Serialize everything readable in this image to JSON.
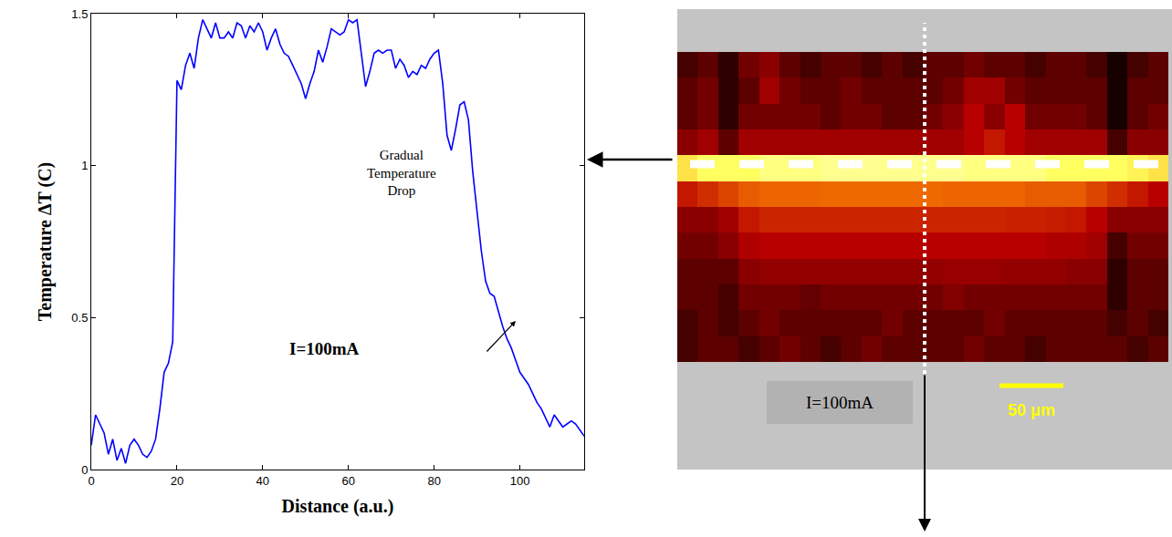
{
  "chart_data": [
    {
      "type": "line",
      "x_label": "Distance (a.u.)",
      "y_label": "Temperature ΔT (C)",
      "annotations": [
        "I=100mA",
        "Gradual Temperature Drop"
      ],
      "x": [
        0,
        1,
        2,
        3,
        4,
        5,
        6,
        7,
        8,
        9,
        10,
        11,
        12,
        13,
        14,
        15,
        16,
        17,
        18,
        19,
        20,
        21,
        22,
        23,
        24,
        25,
        26,
        27,
        28,
        29,
        30,
        31,
        32,
        33,
        34,
        35,
        36,
        37,
        38,
        39,
        40,
        41,
        42,
        43,
        44,
        45,
        46,
        47,
        48,
        49,
        50,
        51,
        52,
        53,
        54,
        55,
        56,
        57,
        58,
        59,
        60,
        61,
        62,
        63,
        64,
        65,
        66,
        67,
        68,
        69,
        70,
        71,
        72,
        73,
        74,
        75,
        76,
        77,
        78,
        79,
        80,
        81,
        82,
        83,
        84,
        85,
        86,
        87,
        88,
        89,
        90,
        91,
        92,
        93,
        94,
        95,
        96,
        97,
        98,
        99,
        100,
        101,
        102,
        103,
        104,
        105,
        106,
        107,
        108,
        109,
        110,
        111,
        112,
        113,
        114,
        115
      ],
      "values": [
        0.08,
        0.18,
        0.15,
        0.12,
        0.05,
        0.1,
        0.03,
        0.07,
        0.02,
        0.08,
        0.1,
        0.08,
        0.05,
        0.04,
        0.06,
        0.1,
        0.2,
        0.32,
        0.35,
        0.42,
        1.28,
        1.25,
        1.33,
        1.37,
        1.32,
        1.42,
        1.48,
        1.45,
        1.42,
        1.47,
        1.42,
        1.42,
        1.44,
        1.42,
        1.47,
        1.46,
        1.42,
        1.46,
        1.44,
        1.47,
        1.44,
        1.38,
        1.42,
        1.45,
        1.4,
        1.37,
        1.36,
        1.33,
        1.3,
        1.27,
        1.22,
        1.27,
        1.31,
        1.38,
        1.34,
        1.39,
        1.45,
        1.44,
        1.43,
        1.44,
        1.48,
        1.47,
        1.48,
        1.37,
        1.26,
        1.31,
        1.37,
        1.38,
        1.37,
        1.38,
        1.38,
        1.32,
        1.35,
        1.33,
        1.29,
        1.31,
        1.3,
        1.33,
        1.32,
        1.35,
        1.37,
        1.38,
        1.27,
        1.1,
        1.05,
        1.12,
        1.2,
        1.21,
        1.15,
        0.98,
        0.85,
        0.72,
        0.62,
        0.58,
        0.57,
        0.52,
        0.47,
        0.43,
        0.4,
        0.36,
        0.32,
        0.3,
        0.28,
        0.25,
        0.22,
        0.2,
        0.17,
        0.14,
        0.18,
        0.16,
        0.14,
        0.15,
        0.16,
        0.15,
        0.13,
        0.11
      ],
      "color": "#0000ff",
      "xlim": [
        0,
        115
      ],
      "xticks": [
        0,
        20,
        40,
        60,
        80,
        100
      ],
      "ylim": [
        0,
        1.5
      ],
      "yticks": [
        0,
        0.5,
        1,
        1.5
      ],
      "grid": false
    },
    {
      "type": "heatmap",
      "annotations": [
        "I=100mA",
        "50 μm"
      ],
      "tick_labels": false,
      "zlim": [
        0,
        1
      ],
      "z": [
        [
          0.15,
          0.2,
          0.1,
          0.25,
          0.3,
          0.2,
          0.15,
          0.2,
          0.2,
          0.15,
          0.2,
          0.15,
          0.2,
          0.2,
          0.25,
          0.2,
          0.2,
          0.15,
          0.2,
          0.2,
          0.15,
          0.05,
          0.15,
          0.2
        ],
        [
          0.2,
          0.25,
          0.1,
          0.2,
          0.35,
          0.25,
          0.2,
          0.2,
          0.25,
          0.2,
          0.2,
          0.2,
          0.2,
          0.25,
          0.35,
          0.35,
          0.25,
          0.2,
          0.2,
          0.2,
          0.2,
          0.05,
          0.2,
          0.2
        ],
        [
          0.2,
          0.25,
          0.1,
          0.25,
          0.25,
          0.25,
          0.25,
          0.2,
          0.25,
          0.25,
          0.2,
          0.2,
          0.25,
          0.3,
          0.4,
          0.3,
          0.4,
          0.25,
          0.25,
          0.25,
          0.2,
          0.05,
          0.2,
          0.25
        ],
        [
          0.3,
          0.35,
          0.2,
          0.35,
          0.35,
          0.35,
          0.35,
          0.35,
          0.35,
          0.35,
          0.35,
          0.35,
          0.35,
          0.35,
          0.4,
          0.45,
          0.4,
          0.35,
          0.35,
          0.35,
          0.35,
          0.15,
          0.3,
          0.3
        ],
        [
          0.85,
          0.9,
          0.9,
          0.9,
          0.92,
          0.92,
          0.92,
          0.93,
          0.93,
          0.93,
          0.93,
          0.93,
          0.93,
          0.93,
          0.92,
          0.92,
          0.92,
          0.92,
          0.9,
          0.9,
          0.9,
          0.9,
          0.88,
          0.85
        ],
        [
          0.45,
          0.5,
          0.55,
          0.6,
          0.62,
          0.62,
          0.62,
          0.63,
          0.63,
          0.63,
          0.63,
          0.63,
          0.63,
          0.62,
          0.62,
          0.62,
          0.62,
          0.6,
          0.6,
          0.6,
          0.55,
          0.5,
          0.45,
          0.4
        ],
        [
          0.3,
          0.3,
          0.35,
          0.45,
          0.48,
          0.48,
          0.48,
          0.48,
          0.48,
          0.48,
          0.48,
          0.48,
          0.48,
          0.48,
          0.48,
          0.48,
          0.47,
          0.47,
          0.46,
          0.45,
          0.4,
          0.3,
          0.3,
          0.3
        ],
        [
          0.25,
          0.25,
          0.3,
          0.38,
          0.4,
          0.4,
          0.4,
          0.4,
          0.4,
          0.4,
          0.4,
          0.4,
          0.4,
          0.4,
          0.4,
          0.4,
          0.4,
          0.4,
          0.38,
          0.38,
          0.35,
          0.15,
          0.25,
          0.25
        ],
        [
          0.2,
          0.2,
          0.2,
          0.3,
          0.32,
          0.32,
          0.32,
          0.32,
          0.32,
          0.32,
          0.32,
          0.32,
          0.32,
          0.33,
          0.33,
          0.33,
          0.32,
          0.32,
          0.32,
          0.3,
          0.3,
          0.1,
          0.2,
          0.2
        ],
        [
          0.2,
          0.2,
          0.15,
          0.25,
          0.25,
          0.25,
          0.22,
          0.25,
          0.25,
          0.25,
          0.25,
          0.25,
          0.25,
          0.28,
          0.25,
          0.25,
          0.25,
          0.25,
          0.25,
          0.25,
          0.25,
          0.1,
          0.2,
          0.2
        ],
        [
          0.15,
          0.2,
          0.15,
          0.2,
          0.25,
          0.2,
          0.2,
          0.2,
          0.2,
          0.2,
          0.25,
          0.2,
          0.2,
          0.2,
          0.2,
          0.25,
          0.2,
          0.2,
          0.2,
          0.2,
          0.2,
          0.15,
          0.2,
          0.15
        ],
        [
          0.15,
          0.2,
          0.2,
          0.15,
          0.2,
          0.25,
          0.2,
          0.15,
          0.2,
          0.25,
          0.2,
          0.2,
          0.2,
          0.2,
          0.25,
          0.2,
          0.2,
          0.15,
          0.2,
          0.2,
          0.2,
          0.2,
          0.15,
          0.2
        ]
      ]
    }
  ]
}
